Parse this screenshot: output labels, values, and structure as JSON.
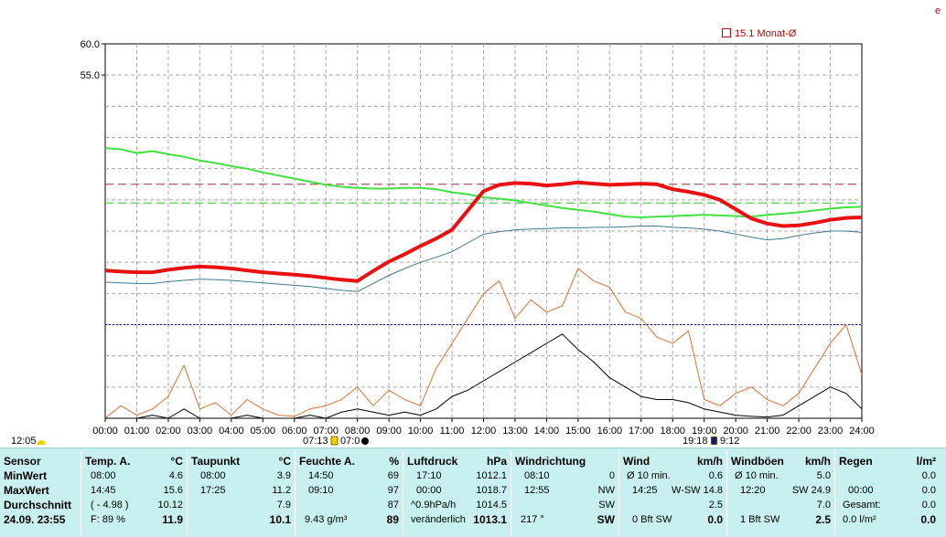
{
  "corner_mark": "e",
  "legend": {
    "label": "15.1 Monat-Ø"
  },
  "chart_data": {
    "type": "line",
    "ylim": [
      0,
      60
    ],
    "yticks": [
      "60.0",
      "55.0"
    ],
    "grid": true,
    "x_ticks": [
      "00:00",
      "01:00",
      "02:00",
      "03:00",
      "04:00",
      "05:00",
      "06:00",
      "07:00",
      "08:00",
      "09:00",
      "10:00",
      "11:00",
      "12:00",
      "13:00",
      "14:00",
      "15:00",
      "16:00",
      "17:00",
      "18:00",
      "19:00",
      "20:00",
      "21:00",
      "22:00",
      "23:00",
      "24:00"
    ],
    "x_hours": [
      0,
      0.5,
      1,
      1.5,
      2,
      2.5,
      3,
      3.5,
      4,
      4.5,
      5,
      5.5,
      6,
      6.5,
      7,
      7.5,
      8,
      8.5,
      9,
      9.5,
      10,
      10.5,
      11,
      11.5,
      12,
      12.5,
      13,
      13.5,
      14,
      14.5,
      15,
      15.5,
      16,
      16.5,
      17,
      17.5,
      18,
      18.5,
      19,
      19.5,
      20,
      20.5,
      21,
      21.5,
      22,
      22.5,
      23,
      23.5,
      24
    ],
    "references": [
      {
        "name": "Monat-Ø",
        "value": 37.5,
        "color": "#a03030",
        "dash": "9,5"
      },
      {
        "name": "",
        "value": 34.5,
        "color": "#30c030",
        "dash": "9,5"
      },
      {
        "name": "",
        "value": 15.0,
        "color": "#0000d0",
        "dash": "2,2"
      }
    ],
    "series": [
      {
        "color": "#40e040",
        "width": 2,
        "values": [
          43.3,
          43.1,
          42.5,
          42.8,
          42.3,
          41.9,
          41.3,
          40.9,
          40.4,
          40.0,
          39.4,
          38.9,
          38.4,
          37.9,
          37.4,
          37.1,
          36.9,
          36.8,
          36.8,
          36.9,
          36.9,
          36.7,
          36.2,
          35.9,
          35.4,
          35.2,
          34.9,
          34.5,
          34.1,
          33.7,
          33.4,
          33.1,
          32.7,
          32.3,
          32.2,
          32.3,
          32.4,
          32.5,
          32.6,
          32.5,
          32.4,
          32.3,
          32.6,
          32.8,
          33.0,
          33.3,
          33.6,
          33.8,
          33.9
        ]
      },
      {
        "color": "#e81010",
        "width": 4,
        "values": [
          23.7,
          23.5,
          23.4,
          23.4,
          23.8,
          24.1,
          24.3,
          24.2,
          24.0,
          23.7,
          23.4,
          23.2,
          23.0,
          22.8,
          22.5,
          22.2,
          22.0,
          23.6,
          25.1,
          26.3,
          27.6,
          28.8,
          30.2,
          33.3,
          36.4,
          37.4,
          37.7,
          37.6,
          37.3,
          37.5,
          37.8,
          37.6,
          37.4,
          37.5,
          37.6,
          37.5,
          36.7,
          36.3,
          35.8,
          35.0,
          33.5,
          32.0,
          31.2,
          30.8,
          30.9,
          31.3,
          31.8,
          32.1,
          32.2
        ]
      },
      {
        "color": "#407890",
        "width": 1,
        "values": [
          21.8,
          21.7,
          21.6,
          21.6,
          21.9,
          22.1,
          22.3,
          22.2,
          22.1,
          21.9,
          21.7,
          21.5,
          21.3,
          21.1,
          20.8,
          20.5,
          20.3,
          21.6,
          22.9,
          24.0,
          25.0,
          25.8,
          26.7,
          28.1,
          29.5,
          29.9,
          30.2,
          30.3,
          30.4,
          30.5,
          30.5,
          30.6,
          30.6,
          30.7,
          30.8,
          30.8,
          30.6,
          30.5,
          30.3,
          30.0,
          29.5,
          29.0,
          28.6,
          28.8,
          29.3,
          29.7,
          30.0,
          30.0,
          29.8
        ]
      },
      {
        "color": "#e07030",
        "width": 1,
        "values": [
          0.0,
          2.0,
          0.5,
          1.5,
          3.5,
          8.5,
          1.5,
          2.5,
          0.5,
          3.0,
          1.5,
          0.5,
          0.3,
          1.5,
          2.0,
          3.0,
          5.0,
          2.0,
          4.5,
          3.0,
          2.0,
          8.0,
          12.0,
          16.0,
          20.0,
          22.0,
          16.0,
          19.0,
          17.0,
          18.0,
          24.0,
          22.0,
          21.0,
          17.0,
          16.0,
          13.0,
          12.0,
          14.0,
          3.0,
          2.0,
          4.0,
          5.0,
          3.0,
          2.0,
          4.0,
          8.0,
          12.0,
          15.0,
          7.0
        ]
      },
      {
        "color": "#000000",
        "width": 1,
        "values": [
          0,
          0,
          0,
          0.5,
          0,
          1.5,
          0,
          0,
          0,
          0.5,
          0,
          0,
          0,
          0.5,
          0,
          1.0,
          1.5,
          1.0,
          0.5,
          1.0,
          0.5,
          1.5,
          3.5,
          4.5,
          6.0,
          7.5,
          9.0,
          10.5,
          12.0,
          13.5,
          11.0,
          9.0,
          6.5,
          5.0,
          3.5,
          3.0,
          3.0,
          2.5,
          1.5,
          1.0,
          0.5,
          0.3,
          0.2,
          0.5,
          2.0,
          3.5,
          5.0,
          4.0,
          1.5
        ]
      }
    ]
  },
  "events": {
    "sunrise": "07:13",
    "transit": "07:0",
    "sunset": "19:18",
    "moon": "9:12",
    "left_time": "12:05"
  },
  "table": {
    "sensor": {
      "header": "Sensor",
      "min": "MinWert",
      "max": "MaxWert",
      "avg": "Durchschnitt",
      "now": "24.09. 23:55"
    },
    "temp": {
      "header": "Temp. A.",
      "unit": "°C",
      "min_time": "08:00",
      "min_val": "4.6",
      "max_time": "14:45",
      "max_val": "15.6",
      "avg_extra": "( - 4.98 )",
      "avg_val": "10.12",
      "now_extra": "F: 89 %",
      "now_val": "11.9"
    },
    "dew": {
      "header": "Taupunkt",
      "unit": "°C",
      "min_time": "08:00",
      "min_val": "3.9",
      "max_time": "17:25",
      "max_val": "11.2",
      "avg_val": "7.9",
      "now_val": "10.1"
    },
    "hum": {
      "header": "Feuchte A.",
      "unit": "%",
      "min_time": "14:50",
      "min_val": "69",
      "max_time": "09:10",
      "max_val": "97",
      "avg_val": "87",
      "now_extra": "9.43 g/m³",
      "now_val": "89"
    },
    "press": {
      "header": "Luftdruck",
      "unit": "hPa",
      "min_time": "17:10",
      "min_val": "1012.1",
      "max_time": "00:00",
      "max_val": "1018.7",
      "avg_extra": "^0.9hPa/h",
      "avg_val": "1014.5",
      "now_extra": "veränderlich",
      "now_val": "1013.1"
    },
    "dir": {
      "header": "Windrichtung",
      "min_time": "08:10",
      "min_val": "0",
      "max_time": "12:55",
      "max_val": "NW",
      "avg_val": "SW",
      "now_extra": "217 °",
      "now_val": "SW"
    },
    "wind": {
      "header": "Wind",
      "unit": "km/h",
      "min_extra": "Ø 10 min.",
      "min_val": "0.6",
      "max_time": "14:25",
      "max_extra": "W-SW 14.8",
      "avg_val": "2.5",
      "now_extra": "0 Bft SW",
      "now_val": "0.0"
    },
    "gust": {
      "header": "Windböen",
      "unit": "km/h",
      "min_extra": "Ø 10 min.",
      "min_val": "5.0",
      "max_time": "12:20",
      "max_extra": "SW 24.9",
      "avg_val": "7.0",
      "now_extra": "1 Bft SW",
      "now_val": "2.5"
    },
    "rain": {
      "header": "Regen",
      "unit": "l/m²",
      "min_val": "0.0",
      "max_time": "00:00",
      "max_val": "0.0",
      "avg_extra": "Gesamt:",
      "avg_val": "0.0",
      "now_extra": "0.0 l/m²",
      "now_val": "0.0"
    }
  }
}
